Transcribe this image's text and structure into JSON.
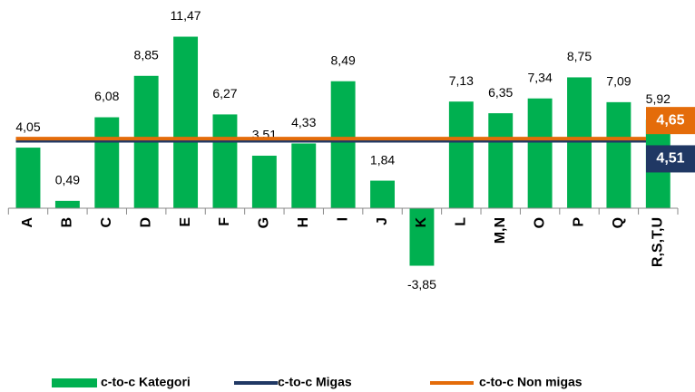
{
  "chart_data": {
    "type": "bar",
    "categories": [
      "A",
      "B",
      "C",
      "D",
      "E",
      "F",
      "G",
      "H",
      "I",
      "J",
      "K",
      "L",
      "M,N",
      "O",
      "P",
      "Q",
      "R,S,T,U"
    ],
    "series": [
      {
        "name": "c-to-c Kategori",
        "color": "#00b050",
        "values": [
          4.05,
          0.49,
          6.08,
          8.85,
          11.47,
          6.27,
          3.51,
          4.33,
          8.49,
          1.84,
          -3.85,
          7.13,
          6.35,
          7.34,
          8.75,
          7.09,
          5.92
        ],
        "value_labels": [
          "4,05",
          "0,49",
          "6,08",
          "8,85",
          "11,47",
          "6,27",
          "3,51",
          "4,33",
          "8,49",
          "1,84",
          "-3,85",
          "7,13",
          "6,35",
          "7,34",
          "8,75",
          "7,09",
          "5,92"
        ]
      }
    ],
    "reference_lines": [
      {
        "name": "c-to-c Migas",
        "color": "#203864",
        "value": 4.51,
        "value_label": "4,51"
      },
      {
        "name": "c-to-c Non migas",
        "color": "#e46c0a",
        "value": 4.65,
        "value_label": "4,65"
      }
    ],
    "ylim": [
      -4,
      13.5
    ]
  }
}
